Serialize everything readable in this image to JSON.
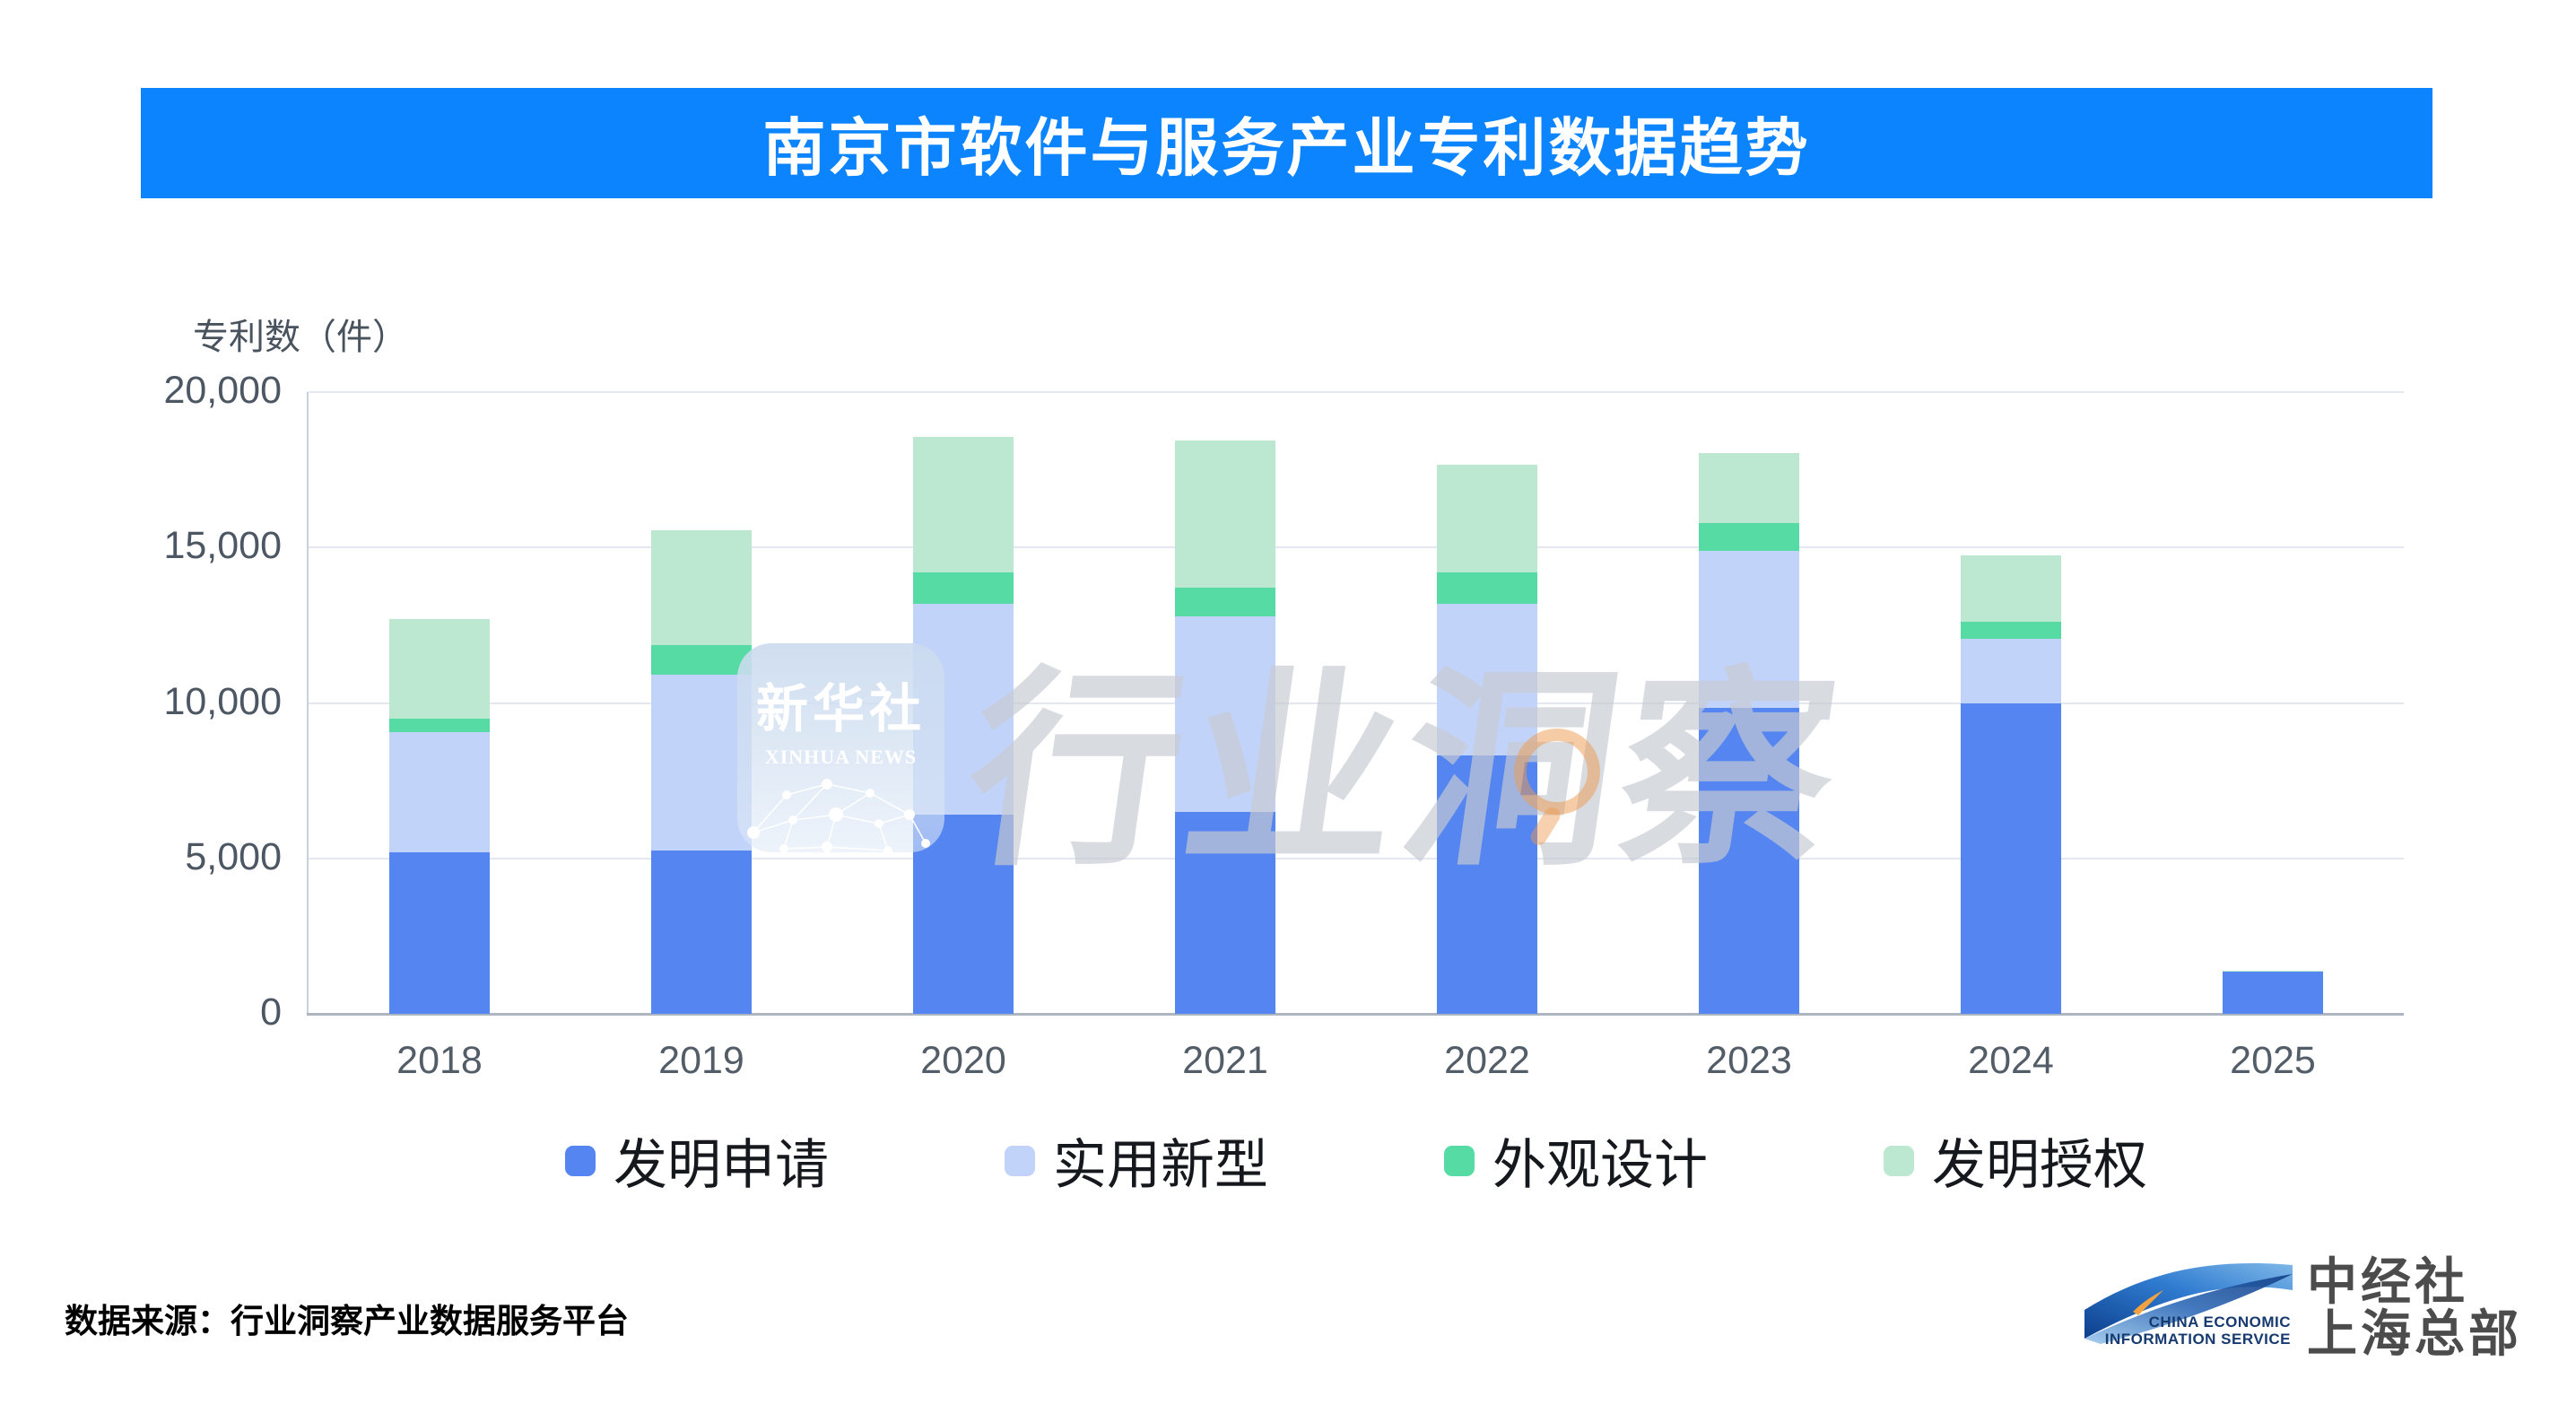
{
  "title": {
    "text": "南京市软件与服务产业专利数据趋势"
  },
  "colors": {
    "banner_blue": "#0B84FE",
    "series_blue": "#5585F0",
    "series_light_blue": "#C2D3FA",
    "series_green": "#55DBA3",
    "series_light_green": "#BCE7D1",
    "gridline": "#E2E7F1",
    "axis_text": "#4C5763"
  },
  "chart_data": {
    "type": "bar",
    "stacked": true,
    "title": "南京市软件与服务产业专利数据趋势",
    "ylabel": "专利数（件）",
    "xlabel": "",
    "ylim": [
      0,
      20000
    ],
    "grid": true,
    "legend_position": "bottom",
    "categories": [
      "2018",
      "2019",
      "2020",
      "2021",
      "2022",
      "2023",
      "2024",
      "2025"
    ],
    "series": [
      {
        "name": "发明申请",
        "color": "#5585F0",
        "values": [
          5200,
          5250,
          6400,
          6500,
          8300,
          9850,
          10000,
          1350
        ]
      },
      {
        "name": "实用新型",
        "color": "#C2D3FA",
        "values": [
          3850,
          5650,
          6800,
          6300,
          4900,
          5050,
          2050,
          0
        ]
      },
      {
        "name": "外观设计",
        "color": "#55DBA3",
        "values": [
          450,
          950,
          1000,
          900,
          1000,
          900,
          550,
          0
        ]
      },
      {
        "name": "发明授权",
        "color": "#BCE7D1",
        "values": [
          3200,
          3700,
          4350,
          4750,
          3450,
          2250,
          2150,
          50
        ]
      }
    ],
    "totals": [
      12700,
      15550,
      18550,
      18450,
      17650,
      18050,
      14750,
      1400
    ],
    "yticks": [
      {
        "value": 20000,
        "label": "20,000"
      },
      {
        "value": 15000,
        "label": "15,000"
      },
      {
        "value": 10000,
        "label": "10,000"
      },
      {
        "value": 5000,
        "label": "5,000"
      },
      {
        "value": 0,
        "label": "0"
      }
    ]
  },
  "watermark": {
    "box_title": "新华社",
    "box_subtitle": "XINHUA NEWS",
    "big_text": "行业洞察"
  },
  "footer": {
    "source": "数据来源：行业洞察产业数据服务平台"
  },
  "logo": {
    "en_line1": "CHINA ECONOMIC",
    "en_line2": "INFORMATION SERVICE",
    "cn_line1": "中经社",
    "cn_line2": "上海总部"
  }
}
